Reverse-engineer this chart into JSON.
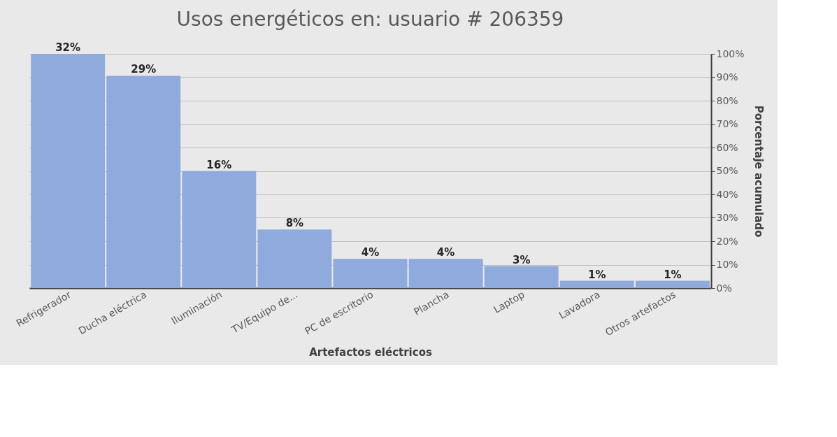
{
  "chart_data": {
    "type": "bar",
    "title": "Usos energéticos en: usuario # 206359",
    "categories": [
      "Refrigerador",
      "Ducha eléctrica",
      "Iluminación",
      "TV/Equipo de...",
      "PC de escritorio",
      "Plancha",
      "Laptop",
      "Lavadora",
      "Otros artefactos"
    ],
    "values": [
      32,
      29,
      16,
      8,
      4,
      4,
      3,
      1,
      1
    ],
    "color": "#8faadc",
    "data_labels": true,
    "value_labels": [
      "32%",
      "29%",
      "16%",
      "8%",
      "4%",
      "4%",
      "3%",
      "1%",
      "1%"
    ],
    "xlabel": "Artefactos eléctricos",
    "y2label": "Porcentaje acumulado",
    "y2lim": [
      0,
      100
    ],
    "y2ticks": [
      {
        "value": 0,
        "label": "0%"
      },
      {
        "value": 10,
        "label": "10%"
      },
      {
        "value": 20,
        "label": "20%"
      },
      {
        "value": 30,
        "label": "30%"
      },
      {
        "value": 40,
        "label": "40%"
      },
      {
        "value": 50,
        "label": "50%"
      },
      {
        "value": 60,
        "label": "60%"
      },
      {
        "value": 70,
        "label": "70%"
      },
      {
        "value": 80,
        "label": "80%"
      },
      {
        "value": 90,
        "label": "90%"
      },
      {
        "value": 100,
        "label": "100%"
      }
    ],
    "grid": "y"
  }
}
